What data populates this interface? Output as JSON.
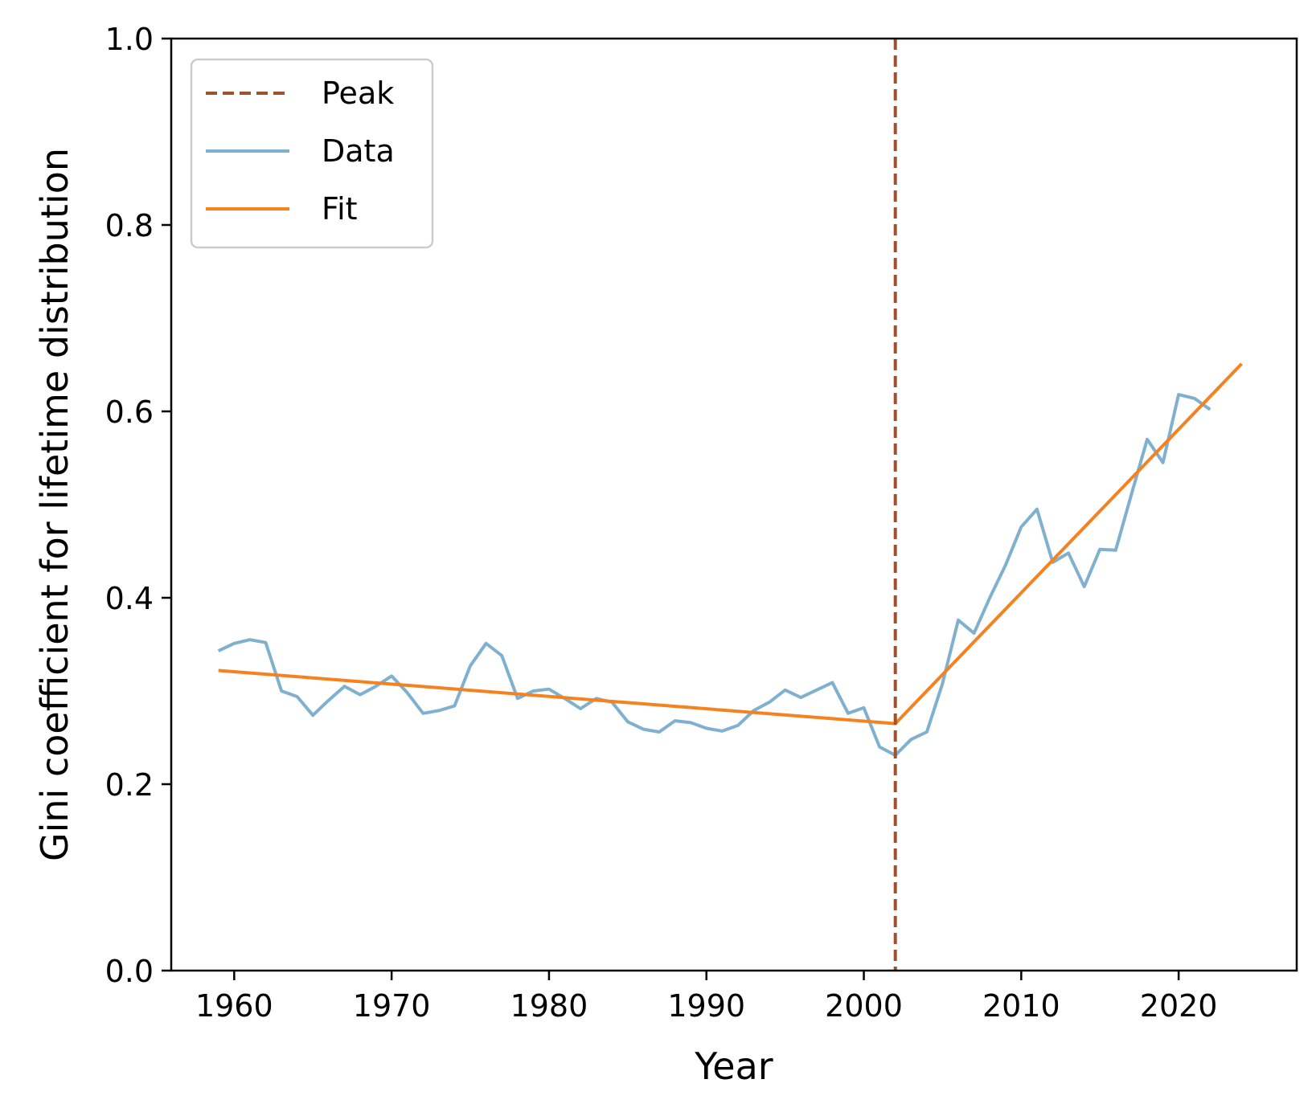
{
  "chart_data": {
    "type": "line",
    "xlabel": "Year",
    "ylabel": "Gini coefficient for lifetime distribution",
    "xlim": [
      1956,
      2027.5
    ],
    "ylim": [
      0.0,
      1.0
    ],
    "x_ticks": [
      1960,
      1970,
      1980,
      1990,
      2000,
      2010,
      2020
    ],
    "y_ticks": [
      0.0,
      0.2,
      0.4,
      0.6,
      0.8,
      1.0
    ],
    "y_tick_labels": [
      "0.0",
      "0.2",
      "0.4",
      "0.6",
      "0.8",
      "1.0"
    ],
    "grid": false,
    "legend": {
      "position": "upper-left",
      "entries": [
        {
          "label": "Peak",
          "color": "#a0522d",
          "style": "dashed"
        },
        {
          "label": "Data",
          "color": "#7fb0d0",
          "style": "solid"
        },
        {
          "label": "Fit",
          "color": "#f5821f",
          "style": "solid"
        }
      ]
    },
    "peak": {
      "name": "Peak",
      "x": 2002,
      "color": "#a0522d"
    },
    "series": [
      {
        "name": "Data",
        "color": "#7fb0d0",
        "x": [
          1959,
          1960,
          1961,
          1962,
          1963,
          1964,
          1965,
          1966,
          1967,
          1968,
          1969,
          1970,
          1971,
          1972,
          1973,
          1974,
          1975,
          1976,
          1977,
          1978,
          1979,
          1980,
          1981,
          1982,
          1983,
          1984,
          1985,
          1986,
          1987,
          1988,
          1989,
          1990,
          1991,
          1992,
          1993,
          1994,
          1995,
          1996,
          1997,
          1998,
          1999,
          2000,
          2001,
          2002,
          2003,
          2004,
          2005,
          2006,
          2007,
          2008,
          2009,
          2010,
          2011,
          2012,
          2013,
          2014,
          2015,
          2016,
          2017,
          2018,
          2019,
          2020,
          2021,
          2022
        ],
        "y": [
          0.343,
          0.351,
          0.355,
          0.352,
          0.3,
          0.294,
          0.274,
          0.29,
          0.305,
          0.296,
          0.305,
          0.316,
          0.298,
          0.276,
          0.279,
          0.284,
          0.327,
          0.351,
          0.338,
          0.292,
          0.3,
          0.302,
          0.292,
          0.281,
          0.292,
          0.288,
          0.267,
          0.259,
          0.256,
          0.268,
          0.266,
          0.26,
          0.257,
          0.263,
          0.279,
          0.288,
          0.301,
          0.293,
          0.301,
          0.309,
          0.276,
          0.282,
          0.24,
          0.231,
          0.248,
          0.256,
          0.308,
          0.376,
          0.362,
          0.4,
          0.435,
          0.476,
          0.495,
          0.438,
          0.448,
          0.412,
          0.452,
          0.451,
          0.511,
          0.57,
          0.545,
          0.618,
          0.614,
          0.602
        ]
      },
      {
        "name": "Fit",
        "color": "#f5821f",
        "x": [
          1959,
          2002,
          2024
        ],
        "y": [
          0.322,
          0.265,
          0.651
        ]
      }
    ]
  }
}
